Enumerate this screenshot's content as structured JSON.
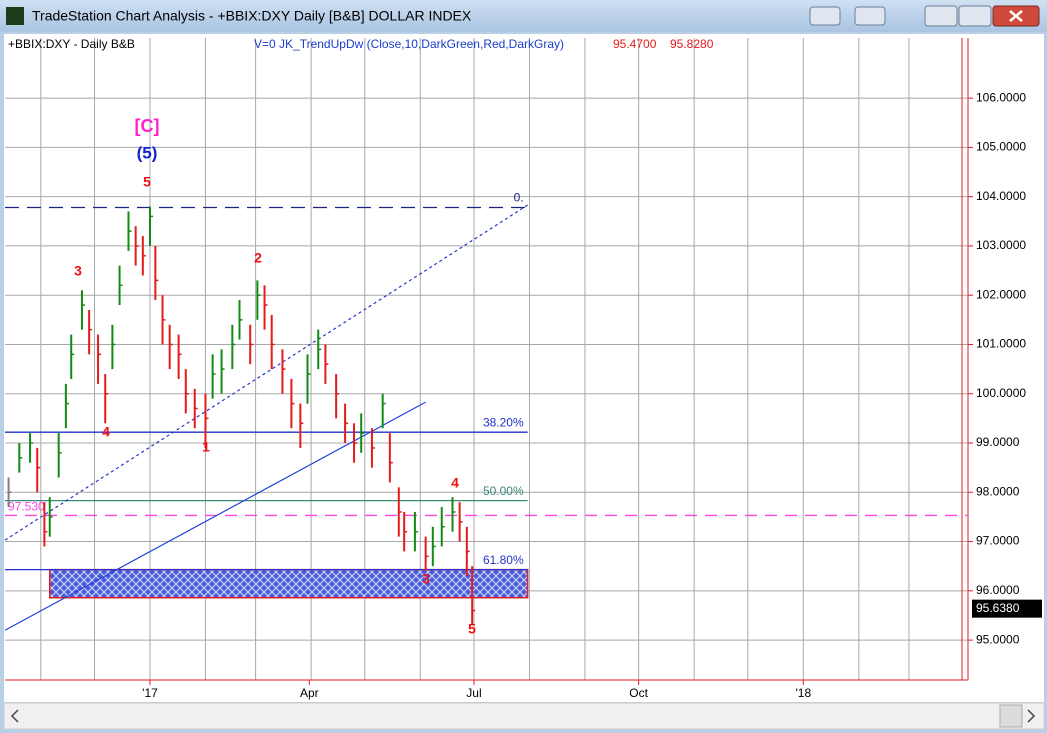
{
  "window": {
    "title": "TradeStation Chart Analysis - +BBIX:DXY Daily [B&B] DOLLAR INDEX"
  },
  "chart_data": {
    "type": "hlc",
    "symbol_label": "+BBIX:DXY - Daily  B&B",
    "indicator_label": "V=0  JK_TrendUpDw (Close,10,DarkGreen,Red,DarkGray)",
    "indicator_values": [
      "95.4700",
      "95.8280"
    ],
    "last_price": {
      "value": 95.638,
      "label": "95.6380"
    },
    "up_color": "#138a13",
    "down_color": "#e41b1b",
    "neutral_color": "#808080",
    "x": [
      -79,
      -73,
      -67,
      -63,
      -59,
      -56,
      -51,
      -47,
      -44,
      -38,
      -34,
      -29,
      -25,
      -21,
      -17,
      -12,
      -8,
      -4,
      0,
      3,
      7,
      11,
      16,
      20,
      25,
      31,
      35,
      40,
      46,
      50,
      56,
      60,
      64,
      68,
      74,
      79,
      84,
      88,
      94,
      98,
      104,
      109,
      114,
      118,
      124,
      130,
      134,
      139,
      142,
      148,
      154,
      158,
      163,
      169,
      173,
      177,
      180
    ],
    "close": [
      98.0,
      98.7,
      99.0,
      98.5,
      97.2,
      97.5,
      98.8,
      99.8,
      100.8,
      101.8,
      101.3,
      100.8,
      100.0,
      101.0,
      102.2,
      103.3,
      103.0,
      102.8,
      103.6,
      102.3,
      101.5,
      101.0,
      100.8,
      100.0,
      99.7,
      99.5,
      100.4,
      100.5,
      101.0,
      101.5,
      101.0,
      102.0,
      101.8,
      101.0,
      100.5,
      99.8,
      99.4,
      100.4,
      100.9,
      100.6,
      100.0,
      99.4,
      99.0,
      99.2,
      98.9,
      99.8,
      98.6,
      97.6,
      97.2,
      97.2,
      96.7,
      96.9,
      97.3,
      97.6,
      97.4,
      96.8,
      95.6
    ],
    "high": [
      98.3,
      99.0,
      99.2,
      98.9,
      97.8,
      97.9,
      99.2,
      100.2,
      101.2,
      102.1,
      101.7,
      101.2,
      100.4,
      101.4,
      102.6,
      103.7,
      103.4,
      103.2,
      103.8,
      103.0,
      102.0,
      101.4,
      101.2,
      100.5,
      100.1,
      100.0,
      100.8,
      100.9,
      101.4,
      101.9,
      101.4,
      102.3,
      102.2,
      101.6,
      100.9,
      100.3,
      99.8,
      100.8,
      101.3,
      101.0,
      100.4,
      99.8,
      99.4,
      99.6,
      99.3,
      100.0,
      99.2,
      98.1,
      97.6,
      97.6,
      97.1,
      97.3,
      97.7,
      97.9,
      97.8,
      97.3,
      96.5
    ],
    "low": [
      97.7,
      98.4,
      98.6,
      98.0,
      96.9,
      97.1,
      98.3,
      99.3,
      100.3,
      101.3,
      100.8,
      100.2,
      99.4,
      100.5,
      101.8,
      102.9,
      102.6,
      102.4,
      103.0,
      101.9,
      101.0,
      100.5,
      100.3,
      99.6,
      99.3,
      98.9,
      99.9,
      100.0,
      100.5,
      101.1,
      100.6,
      101.5,
      101.3,
      100.5,
      100.0,
      99.3,
      98.9,
      99.8,
      100.5,
      100.2,
      99.5,
      99.0,
      98.6,
      98.8,
      98.5,
      99.3,
      98.2,
      97.1,
      96.8,
      96.8,
      96.4,
      96.5,
      96.9,
      97.2,
      97.0,
      96.3,
      95.3
    ],
    "xlim": [
      -81,
      457
    ],
    "ylim": [
      94.19,
      107.22
    ],
    "xticks": [
      {
        "value": 0,
        "label": "'17"
      },
      {
        "value": 89,
        "label": "Apr"
      },
      {
        "value": 181,
        "label": "Jul"
      },
      {
        "value": 273,
        "label": "Oct"
      },
      {
        "value": 365,
        "label": "'18"
      }
    ],
    "xgrid": [
      -61,
      -31,
      0,
      31,
      59,
      90,
      120,
      151,
      181,
      212,
      243,
      273,
      304,
      334,
      365,
      396,
      424
    ],
    "yticks": [
      {
        "value": 95,
        "label": "95.0000"
      },
      {
        "value": 96,
        "label": "96.0000"
      },
      {
        "value": 97,
        "label": "97.0000"
      },
      {
        "value": 98,
        "label": "98.0000"
      },
      {
        "value": 99,
        "label": "99.0000"
      },
      {
        "value": 100,
        "label": "100.0000"
      },
      {
        "value": 101,
        "label": "101.0000"
      },
      {
        "value": 102,
        "label": "102.0000"
      },
      {
        "value": 103,
        "label": "103.0000"
      },
      {
        "value": 104,
        "label": "104.0000"
      },
      {
        "value": 105,
        "label": "105.0000"
      },
      {
        "value": 106,
        "label": "106.0000"
      }
    ],
    "grid": true,
    "fib": {
      "end": 211,
      "levels": [
        {
          "value": 103.78,
          "label": "0.",
          "color": "#1a237e",
          "dash": "14,8"
        },
        {
          "value": 99.22,
          "label": "38.20%",
          "color": "#2233cc",
          "dash": ""
        },
        {
          "value": 97.83,
          "label": "50.00%",
          "color": "#3a8a7a",
          "dash": ""
        },
        {
          "value": 96.43,
          "label": "61.80%",
          "color": "#2233cc",
          "dash": ""
        }
      ]
    },
    "pivot": {
      "value": 97.53,
      "label": "97.530",
      "color": "#ff44dd"
    },
    "zone": {
      "from": -56,
      "to": 211,
      "low": 95.86,
      "high": 96.43
    },
    "trendlines": [
      {
        "from": [
          -81,
          97.03
        ],
        "to": [
          211,
          103.83
        ],
        "color": "#2233cc",
        "dash": "3,3"
      },
      {
        "from": [
          -81,
          95.2
        ],
        "to": [
          154,
          99.83
        ],
        "color": "#2244dd",
        "dash": ""
      }
    ],
    "annotations": [
      {
        "text": "[C]",
        "color": "#ff22cc"
      },
      {
        "text": "(5)",
        "color": "#1122cc"
      },
      {
        "text": "5",
        "color": "#ee1111"
      },
      {
        "text": "3",
        "color": "#ee1111"
      },
      {
        "text": "2",
        "color": "#ee1111"
      },
      {
        "text": "4",
        "color": "#ee1111"
      },
      {
        "text": "1",
        "color": "#ee1111"
      },
      {
        "text": "4",
        "color": "#ee1111"
      },
      {
        "text": "3",
        "color": "#ee1111"
      },
      {
        "text": "5",
        "color": "#ee1111"
      }
    ]
  }
}
